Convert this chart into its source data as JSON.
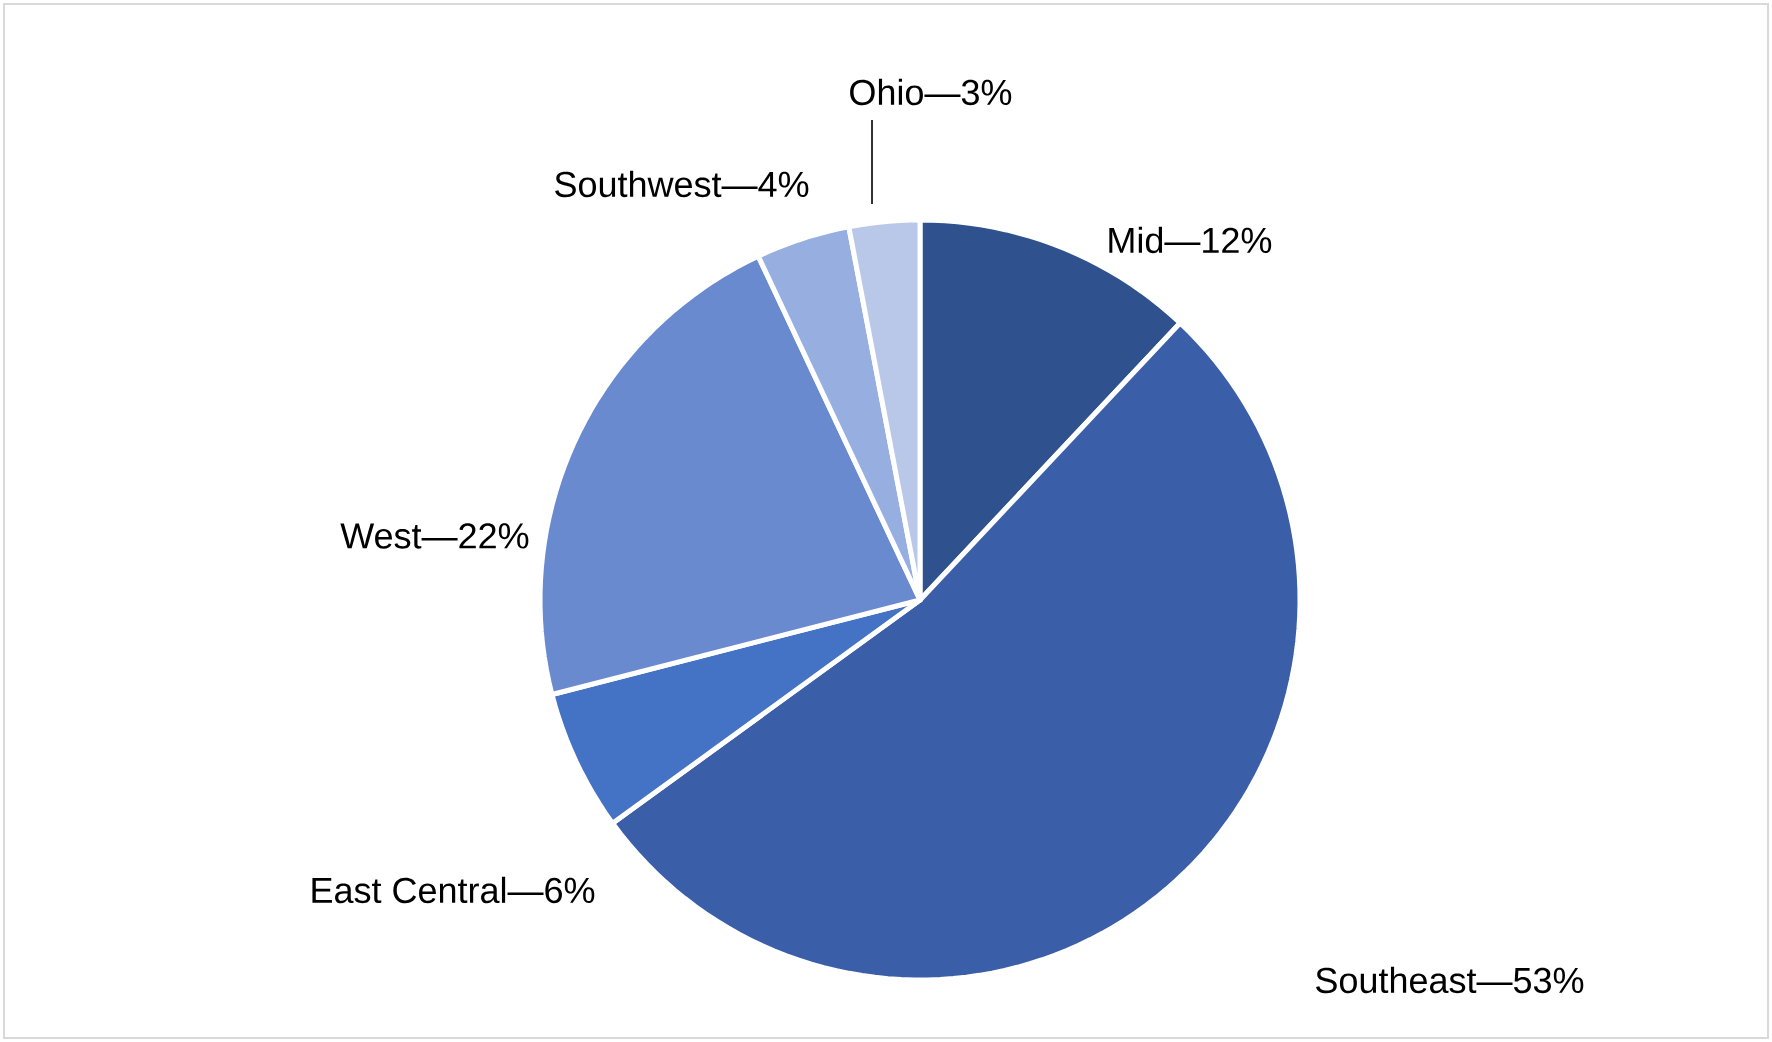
{
  "chart_data": {
    "type": "pie",
    "categories": [
      "Mid—12%",
      "Southeast—53%",
      "East Central—6%",
      "West—22%",
      "Southwest—4%",
      "Ohio—3%"
    ],
    "values": [
      12,
      53,
      6,
      22,
      4,
      3
    ],
    "colors": [
      "#2f528f",
      "#3b5ea8",
      "#4472c4",
      "#6a8ad0",
      "#97aee0",
      "#b9c7e8"
    ]
  }
}
